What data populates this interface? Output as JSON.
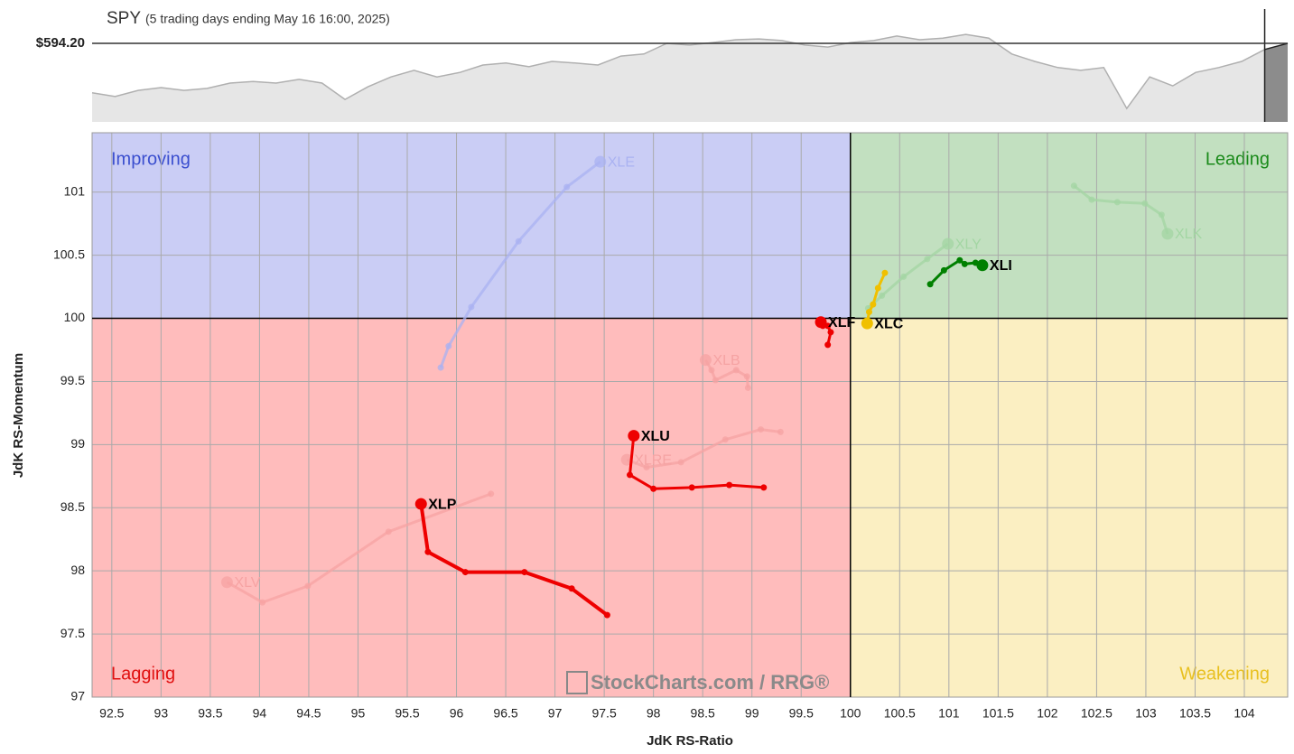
{
  "chart_data": [
    {
      "type": "area",
      "title": "SPY",
      "subtitle": "(5 trading days ending May 16 16:00, 2025)",
      "values": [
        582.1,
        581.2,
        582.7,
        583.4,
        582.7,
        583.2,
        584.5,
        584.9,
        584.5,
        585.4,
        584.5,
        580.5,
        583.6,
        586.0,
        587.6,
        586.0,
        587.1,
        588.9,
        589.4,
        588.5,
        589.8,
        589.4,
        588.9,
        591.1,
        591.6,
        594.2,
        593.8,
        594.4,
        595.1,
        595.3,
        594.9,
        593.8,
        593.3,
        594.4,
        594.9,
        596.0,
        595.1,
        595.5,
        596.4,
        595.5,
        591.6,
        589.8,
        588.3,
        587.6,
        588.3,
        578.3,
        586.0,
        583.8,
        587.1,
        588.3,
        589.8,
        592.7,
        594.2
      ],
      "color": "#e6e6e6",
      "line_color": "#b0b0b0",
      "highlight_from": 51,
      "highlight_color": "#8c8c8c",
      "ylim": [
        575,
        602.6
      ],
      "yticks": [
        {
          "value": 594.2,
          "label": "$594.20"
        }
      ]
    },
    {
      "type": "rrg",
      "xlabel": "JdK RS-Ratio",
      "ylabel": "JdK RS-Momentum",
      "xlim": [
        92.3,
        104.44
      ],
      "ylim": [
        97,
        101.47
      ],
      "xticks": [
        92.5,
        93,
        93.5,
        94,
        94.5,
        95,
        95.5,
        96,
        96.5,
        97,
        97.5,
        98,
        98.5,
        99,
        99.5,
        100,
        100.5,
        101,
        101.5,
        102,
        102.5,
        103,
        103.5,
        104
      ],
      "yticks": [
        97,
        97.5,
        98,
        98.5,
        99,
        99.5,
        100,
        100.5,
        101
      ],
      "grid": true,
      "center": [
        100,
        100
      ],
      "quadrants": [
        {
          "name": "Improving",
          "corner": "top-left",
          "color": "#cacdf5",
          "label_color": "#3b4fcf"
        },
        {
          "name": "Leading",
          "corner": "top-right",
          "color": "#c2e0c0",
          "label_color": "#1a8a1a"
        },
        {
          "name": "Lagging",
          "corner": "bottom-left",
          "color": "#ffbcbc",
          "label_color": "#e01010"
        },
        {
          "name": "Weakening",
          "corner": "bottom-right",
          "color": "#fbefc2",
          "label_color": "#e8c020"
        }
      ],
      "watermark": "StockCharts.com / RRG®",
      "series": [
        {
          "name": "XLE",
          "color": "#aab2f2",
          "faded": true,
          "x": [
            95.84,
            95.92,
            96.15,
            96.63,
            97.12,
            97.46
          ],
          "y": [
            99.61,
            99.78,
            100.09,
            100.61,
            101.04,
            101.24
          ]
        },
        {
          "name": "XLK",
          "color": "#a3d6a3",
          "faded": true,
          "x": [
            102.27,
            102.45,
            102.71,
            102.99,
            103.16,
            103.22
          ],
          "y": [
            101.05,
            100.94,
            100.92,
            100.91,
            100.82,
            100.67
          ]
        },
        {
          "name": "XLY",
          "color": "#a3d6a3",
          "faded": true,
          "x": [
            100.18,
            100.32,
            100.54,
            100.78,
            100.99
          ],
          "y": [
            100.08,
            100.18,
            100.33,
            100.47,
            100.59
          ]
        },
        {
          "name": "XLV",
          "color": "#f7a3a3",
          "faded": true,
          "x": [
            96.35,
            95.31,
            94.49,
            94.03,
            93.67
          ],
          "y": [
            98.61,
            98.31,
            97.88,
            97.75,
            97.91
          ]
        },
        {
          "name": "XLB",
          "color": "#f5a3a3",
          "faded": true,
          "x": [
            98.96,
            98.95,
            98.84,
            98.63,
            98.59,
            98.53
          ],
          "y": [
            99.45,
            99.54,
            99.59,
            99.51,
            99.59,
            99.67
          ]
        },
        {
          "name": "XLRE",
          "color": "#f5a3a3",
          "faded": true,
          "x": [
            99.29,
            99.09,
            98.73,
            98.28,
            97.93,
            97.73
          ],
          "y": [
            99.1,
            99.12,
            99.04,
            98.86,
            98.82,
            98.88
          ]
        },
        {
          "name": "XLI",
          "color": "#008000",
          "faded": false,
          "x": [
            100.81,
            100.95,
            101.11,
            101.16,
            101.27,
            101.34
          ],
          "y": [
            100.27,
            100.38,
            100.46,
            100.43,
            100.44,
            100.42
          ]
        },
        {
          "name": "XLC",
          "color": "#f0c000",
          "faded": false,
          "x": [
            100.35,
            100.28,
            100.23,
            100.19,
            100.17
          ],
          "y": [
            100.36,
            100.24,
            100.11,
            100.05,
            99.96
          ]
        },
        {
          "name": "XLF",
          "color": "#ee0000",
          "faded": false,
          "x": [
            99.77,
            99.8,
            99.77,
            99.72,
            99.7
          ],
          "y": [
            99.79,
            99.89,
            99.94,
            99.94,
            99.97
          ]
        },
        {
          "name": "XLU",
          "color": "#ee0000",
          "faded": false,
          "x": [
            99.12,
            98.77,
            98.39,
            98.0,
            97.76,
            97.8
          ],
          "y": [
            98.66,
            98.68,
            98.66,
            98.65,
            98.76,
            99.07
          ]
        },
        {
          "name": "XLP",
          "color": "#ee0000",
          "faded": false,
          "x": [
            97.53,
            97.17,
            96.69,
            96.09,
            95.71,
            95.64
          ],
          "y": [
            97.65,
            97.86,
            97.99,
            97.99,
            98.15,
            98.53
          ]
        }
      ]
    }
  ]
}
